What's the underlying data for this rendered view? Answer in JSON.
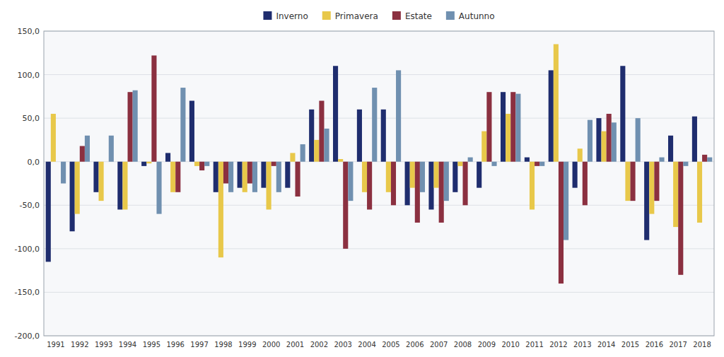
{
  "chart_data": {
    "type": "bar",
    "categories": [
      "1991",
      "1992",
      "1993",
      "1994",
      "1995",
      "1996",
      "1997",
      "1998",
      "1999",
      "2000",
      "2001",
      "2002",
      "2003",
      "2004",
      "2005",
      "2006",
      "2007",
      "2008",
      "2009",
      "2010",
      "2011",
      "2012",
      "2013",
      "2014",
      "2015",
      "2016",
      "2017",
      "2018"
    ],
    "series": [
      {
        "name": "Inverno",
        "color": "#1F2D6E",
        "values": [
          -115,
          -80,
          -35,
          -55,
          -5,
          10,
          70,
          -35,
          -30,
          -30,
          -30,
          60,
          110,
          60,
          60,
          -50,
          -55,
          -35,
          -30,
          80,
          5,
          105,
          -30,
          50,
          110,
          -90,
          30,
          52
        ]
      },
      {
        "name": "Primavera",
        "color": "#E8C84A",
        "values": [
          55,
          -60,
          -45,
          -55,
          -2,
          -35,
          -5,
          -110,
          -35,
          -55,
          10,
          25,
          3,
          -35,
          -35,
          -30,
          -30,
          -5,
          35,
          55,
          -55,
          135,
          15,
          35,
          -45,
          -60,
          -75,
          -70
        ]
      },
      {
        "name": "Estate",
        "color": "#8B3040",
        "values": [
          0,
          18,
          0,
          80,
          122,
          -35,
          -10,
          -25,
          -25,
          -5,
          -40,
          70,
          -100,
          -55,
          -50,
          -70,
          -70,
          -50,
          80,
          80,
          -5,
          -140,
          -50,
          55,
          -45,
          -45,
          -130,
          8
        ]
      },
      {
        "name": "Autunno",
        "color": "#7090B0",
        "values": [
          -25,
          30,
          30,
          82,
          -60,
          85,
          -5,
          -35,
          -35,
          -35,
          20,
          38,
          -45,
          85,
          105,
          -35,
          -45,
          5,
          -5,
          78,
          -5,
          -90,
          48,
          45,
          50,
          5,
          -5,
          5
        ]
      }
    ],
    "ylim": [
      -200,
      150
    ],
    "yticks": [
      {
        "value": -200,
        "label": "-200,0"
      },
      {
        "value": -150,
        "label": "-150,0"
      },
      {
        "value": -100,
        "label": "-100,0"
      },
      {
        "value": -50,
        "label": "-50,0"
      },
      {
        "value": 0,
        "label": "0,0"
      },
      {
        "value": 50,
        "label": "50,0"
      },
      {
        "value": 100,
        "label": "100,0"
      },
      {
        "value": 150,
        "label": "150,0"
      }
    ],
    "grid": true,
    "legend": "top"
  }
}
